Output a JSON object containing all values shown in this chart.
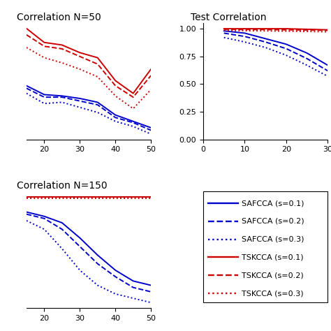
{
  "title_top_left": "Correlation N=50",
  "title_top_right": "Test Correlation",
  "title_bot_left": "Correlation N=150",
  "tl_x": [
    15,
    20,
    25,
    30,
    35,
    40,
    45,
    50
  ],
  "tl_safcca_s01": [
    0.5,
    0.43,
    0.42,
    0.4,
    0.37,
    0.27,
    0.22,
    0.17
  ],
  "tl_safcca_s02": [
    0.48,
    0.41,
    0.41,
    0.38,
    0.35,
    0.25,
    0.21,
    0.15
  ],
  "tl_safcca_s03": [
    0.44,
    0.36,
    0.37,
    0.33,
    0.29,
    0.22,
    0.18,
    0.12
  ],
  "tl_tskcca_s01": [
    0.95,
    0.84,
    0.82,
    0.76,
    0.72,
    0.54,
    0.44,
    0.63
  ],
  "tl_tskcca_s02": [
    0.9,
    0.81,
    0.79,
    0.73,
    0.67,
    0.5,
    0.41,
    0.58
  ],
  "tl_tskcca_s03": [
    0.8,
    0.72,
    0.68,
    0.63,
    0.57,
    0.42,
    0.32,
    0.47
  ],
  "tr_x": [
    5,
    10,
    15,
    20,
    25,
    30
  ],
  "tr_safcca_s01": [
    0.98,
    0.96,
    0.91,
    0.86,
    0.78,
    0.67
  ],
  "tr_safcca_s02": [
    0.96,
    0.93,
    0.88,
    0.82,
    0.73,
    0.62
  ],
  "tr_safcca_s03": [
    0.92,
    0.88,
    0.83,
    0.76,
    0.67,
    0.57
  ],
  "tr_tskcca_s01": [
    1.0,
    1.0,
    1.0,
    1.0,
    0.995,
    0.99
  ],
  "tr_tskcca_s02": [
    0.995,
    0.993,
    0.992,
    0.99,
    0.988,
    0.985
  ],
  "tr_tskcca_s03": [
    0.985,
    0.982,
    0.98,
    0.978,
    0.975,
    0.972
  ],
  "bl_x": [
    15,
    20,
    25,
    30,
    35,
    40,
    45,
    50
  ],
  "bl_safcca_s01": [
    0.92,
    0.9,
    0.87,
    0.8,
    0.72,
    0.65,
    0.6,
    0.58
  ],
  "bl_safcca_s02": [
    0.91,
    0.89,
    0.84,
    0.76,
    0.68,
    0.62,
    0.57,
    0.55
  ],
  "bl_safcca_s03": [
    0.88,
    0.84,
    0.75,
    0.65,
    0.58,
    0.54,
    0.52,
    0.5
  ],
  "bl_tskcca_s01": [
    0.99,
    0.99,
    0.99,
    0.99,
    0.99,
    0.99,
    0.99,
    0.99
  ],
  "bl_tskcca_s02": [
    0.99,
    0.99,
    0.99,
    0.99,
    0.99,
    0.99,
    0.99,
    0.99
  ],
  "bl_tskcca_s03": [
    0.985,
    0.985,
    0.985,
    0.985,
    0.985,
    0.985,
    0.985,
    0.985
  ],
  "color_blue": "#0000CC",
  "color_red": "#CC0000",
  "linewidth": 1.4,
  "fontsize_title": 10,
  "fontsize_tick": 8,
  "fontsize_legend": 8
}
